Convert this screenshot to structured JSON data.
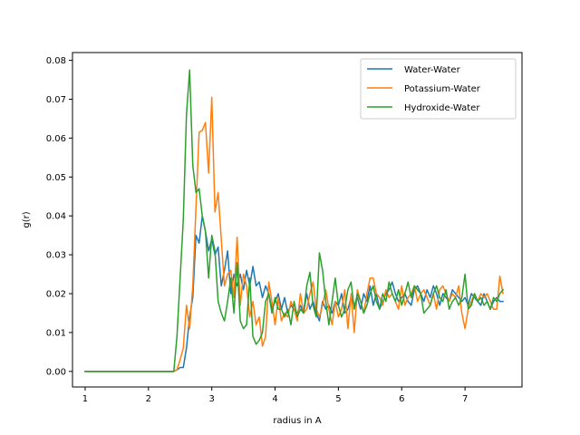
{
  "chart_data": {
    "type": "line",
    "xlabel": "radius in A",
    "ylabel": "g(r)",
    "xlim": [
      0.8,
      7.9
    ],
    "ylim": [
      -0.004,
      0.082
    ],
    "xticks": [
      1,
      2,
      3,
      4,
      5,
      6,
      7
    ],
    "yticks": [
      0.0,
      0.01,
      0.02,
      0.03,
      0.04,
      0.05,
      0.06,
      0.07,
      0.08
    ],
    "ytick_labels": [
      "0.00",
      "0.01",
      "0.02",
      "0.03",
      "0.04",
      "0.05",
      "0.06",
      "0.07",
      "0.08"
    ],
    "grid": false,
    "legend_position": "top-right",
    "series": [
      {
        "name": "Water-Water",
        "color": "#1f77b4",
        "x": [
          1.0,
          2.4,
          2.45,
          2.5,
          2.55,
          2.6,
          2.65,
          2.7,
          2.75,
          2.8,
          2.85,
          2.9,
          2.95,
          3.0,
          3.05,
          3.1,
          3.15,
          3.2,
          3.25,
          3.3,
          3.35,
          3.4,
          3.45,
          3.5,
          3.55,
          3.6,
          3.65,
          3.7,
          3.75,
          3.8,
          3.85,
          3.9,
          3.95,
          4.0,
          4.05,
          4.1,
          4.15,
          4.2,
          4.25,
          4.3,
          4.35,
          4.4,
          4.45,
          4.5,
          4.55,
          4.6,
          4.65,
          4.7,
          4.75,
          4.8,
          4.85,
          4.9,
          4.95,
          5.0,
          5.05,
          5.1,
          5.15,
          5.2,
          5.25,
          5.3,
          5.35,
          5.4,
          5.45,
          5.5,
          5.55,
          5.6,
          5.65,
          5.7,
          5.75,
          5.8,
          5.85,
          5.9,
          5.95,
          6.0,
          6.05,
          6.1,
          6.15,
          6.2,
          6.25,
          6.3,
          6.35,
          6.4,
          6.45,
          6.5,
          6.55,
          6.6,
          6.65,
          6.7,
          6.75,
          6.8,
          6.85,
          6.9,
          6.95,
          7.0,
          7.05,
          7.1,
          7.15,
          7.2,
          7.25,
          7.3,
          7.35,
          7.4,
          7.45,
          7.5,
          7.55,
          7.6
        ],
        "y": [
          0.0,
          0.0,
          0.0004,
          0.001,
          0.001,
          0.006,
          0.014,
          0.019,
          0.035,
          0.033,
          0.04,
          0.036,
          0.031,
          0.034,
          0.03,
          0.032,
          0.022,
          0.026,
          0.031,
          0.02,
          0.025,
          0.022,
          0.025,
          0.021,
          0.026,
          0.022,
          0.027,
          0.022,
          0.023,
          0.019,
          0.022,
          0.02,
          0.016,
          0.018,
          0.02,
          0.016,
          0.019,
          0.015,
          0.017,
          0.016,
          0.015,
          0.017,
          0.015,
          0.02,
          0.016,
          0.018,
          0.015,
          0.013,
          0.018,
          0.016,
          0.017,
          0.015,
          0.018,
          0.017,
          0.02,
          0.015,
          0.016,
          0.019,
          0.017,
          0.019,
          0.016,
          0.02,
          0.018,
          0.022,
          0.017,
          0.02,
          0.016,
          0.018,
          0.02,
          0.021,
          0.023,
          0.02,
          0.018,
          0.019,
          0.02,
          0.018,
          0.017,
          0.021,
          0.022,
          0.02,
          0.018,
          0.021,
          0.019,
          0.022,
          0.02,
          0.017,
          0.02,
          0.019,
          0.018,
          0.021,
          0.02,
          0.019,
          0.018,
          0.019,
          0.017,
          0.02,
          0.019,
          0.018,
          0.017,
          0.02,
          0.018,
          0.016,
          0.018,
          0.019,
          0.018,
          0.018
        ]
      },
      {
        "name": "Potassium-Water",
        "color": "#ff7f0e",
        "x": [
          1.0,
          2.4,
          2.45,
          2.5,
          2.55,
          2.6,
          2.65,
          2.7,
          2.75,
          2.8,
          2.85,
          2.9,
          2.95,
          3.0,
          3.05,
          3.1,
          3.15,
          3.2,
          3.25,
          3.3,
          3.35,
          3.4,
          3.45,
          3.5,
          3.55,
          3.6,
          3.65,
          3.7,
          3.75,
          3.8,
          3.85,
          3.9,
          3.95,
          4.0,
          4.05,
          4.1,
          4.15,
          4.2,
          4.25,
          4.3,
          4.35,
          4.4,
          4.45,
          4.5,
          4.55,
          4.6,
          4.65,
          4.7,
          4.75,
          4.8,
          4.85,
          4.9,
          4.95,
          5.0,
          5.05,
          5.1,
          5.15,
          5.2,
          5.25,
          5.3,
          5.35,
          5.4,
          5.45,
          5.5,
          5.55,
          5.6,
          5.65,
          5.7,
          5.75,
          5.8,
          5.85,
          5.9,
          5.95,
          6.0,
          6.05,
          6.1,
          6.15,
          6.2,
          6.25,
          6.3,
          6.35,
          6.4,
          6.45,
          6.5,
          6.55,
          6.6,
          6.65,
          6.7,
          6.75,
          6.8,
          6.85,
          6.9,
          6.95,
          7.0,
          7.05,
          7.1,
          7.15,
          7.2,
          7.25,
          7.3,
          7.35,
          7.4,
          7.45,
          7.5,
          7.55,
          7.6
        ],
        "y": [
          0.0,
          0.0,
          0.0004,
          0.003,
          0.006,
          0.017,
          0.011,
          0.022,
          0.042,
          0.0615,
          0.062,
          0.064,
          0.051,
          0.0705,
          0.041,
          0.046,
          0.034,
          0.022,
          0.025,
          0.026,
          0.019,
          0.0345,
          0.017,
          0.025,
          0.022,
          0.014,
          0.018,
          0.012,
          0.014,
          0.0065,
          0.009,
          0.023,
          0.018,
          0.012,
          0.019,
          0.013,
          0.015,
          0.014,
          0.018,
          0.016,
          0.013,
          0.02,
          0.015,
          0.016,
          0.02,
          0.023,
          0.016,
          0.014,
          0.017,
          0.021,
          0.016,
          0.012,
          0.018,
          0.014,
          0.016,
          0.021,
          0.011,
          0.02,
          0.01,
          0.021,
          0.018,
          0.015,
          0.02,
          0.024,
          0.024,
          0.02,
          0.019,
          0.017,
          0.021,
          0.019,
          0.02,
          0.018,
          0.016,
          0.022,
          0.017,
          0.019,
          0.02,
          0.022,
          0.018,
          0.02,
          0.021,
          0.019,
          0.017,
          0.02,
          0.016,
          0.021,
          0.022,
          0.02,
          0.018,
          0.02,
          0.019,
          0.022,
          0.015,
          0.011,
          0.016,
          0.018,
          0.02,
          0.018,
          0.02,
          0.019,
          0.02,
          0.018,
          0.016,
          0.016,
          0.0245,
          0.02
        ]
      },
      {
        "name": "Hydroxide-Water",
        "color": "#2ca02c",
        "x": [
          1.0,
          2.35,
          2.4,
          2.45,
          2.5,
          2.55,
          2.6,
          2.65,
          2.7,
          2.75,
          2.8,
          2.85,
          2.9,
          2.95,
          3.0,
          3.05,
          3.1,
          3.15,
          3.2,
          3.25,
          3.3,
          3.35,
          3.4,
          3.45,
          3.5,
          3.55,
          3.6,
          3.65,
          3.7,
          3.75,
          3.8,
          3.85,
          3.9,
          3.95,
          4.0,
          4.05,
          4.1,
          4.15,
          4.2,
          4.25,
          4.3,
          4.35,
          4.4,
          4.45,
          4.5,
          4.55,
          4.6,
          4.65,
          4.7,
          4.75,
          4.8,
          4.85,
          4.9,
          4.95,
          5.0,
          5.05,
          5.1,
          5.15,
          5.2,
          5.25,
          5.3,
          5.35,
          5.4,
          5.45,
          5.5,
          5.55,
          5.6,
          5.65,
          5.7,
          5.75,
          5.8,
          5.85,
          5.9,
          5.95,
          6.0,
          6.05,
          6.1,
          6.15,
          6.2,
          6.25,
          6.3,
          6.35,
          6.4,
          6.45,
          6.5,
          6.55,
          6.6,
          6.65,
          6.7,
          6.75,
          6.8,
          6.85,
          6.9,
          6.95,
          7.0,
          7.05,
          7.1,
          7.15,
          7.2,
          7.25,
          7.3,
          7.35,
          7.4,
          7.45,
          7.5,
          7.55,
          7.6
        ],
        "y": [
          0.0,
          0.0,
          0.0,
          0.009,
          0.024,
          0.039,
          0.066,
          0.0775,
          0.053,
          0.046,
          0.047,
          0.04,
          0.036,
          0.024,
          0.035,
          0.031,
          0.018,
          0.015,
          0.013,
          0.018,
          0.024,
          0.015,
          0.028,
          0.013,
          0.011,
          0.012,
          0.024,
          0.009,
          0.007,
          0.008,
          0.01,
          0.018,
          0.02,
          0.015,
          0.019,
          0.016,
          0.016,
          0.014,
          0.016,
          0.012,
          0.018,
          0.014,
          0.016,
          0.015,
          0.022,
          0.0255,
          0.017,
          0.014,
          0.0305,
          0.026,
          0.018,
          0.012,
          0.018,
          0.024,
          0.017,
          0.014,
          0.016,
          0.021,
          0.023,
          0.016,
          0.02,
          0.018,
          0.015,
          0.017,
          0.02,
          0.022,
          0.018,
          0.016,
          0.02,
          0.018,
          0.023,
          0.02,
          0.018,
          0.021,
          0.017,
          0.02,
          0.023,
          0.019,
          0.022,
          0.021,
          0.02,
          0.015,
          0.016,
          0.017,
          0.02,
          0.022,
          0.019,
          0.018,
          0.021,
          0.016,
          0.018,
          0.019,
          0.017,
          0.019,
          0.025,
          0.016,
          0.017,
          0.02,
          0.018,
          0.019,
          0.017,
          0.018,
          0.016,
          0.019,
          0.018,
          0.02,
          0.021
        ]
      }
    ]
  }
}
